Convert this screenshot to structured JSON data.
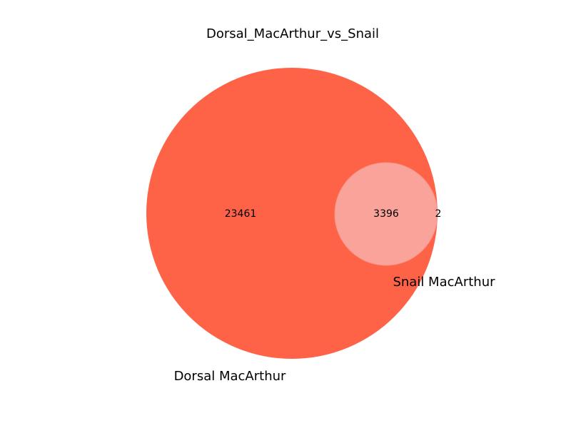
{
  "title": "Dorsal_MacArthur_vs_Snail",
  "sets": {
    "a": {
      "label": "Dorsal MacArthur",
      "color": "#ff6347"
    },
    "b": {
      "label": "Snail MacArthur",
      "color": "#faa39a"
    }
  },
  "counts": {
    "a_only": "23461",
    "both": "3396",
    "b_only": "2"
  }
}
